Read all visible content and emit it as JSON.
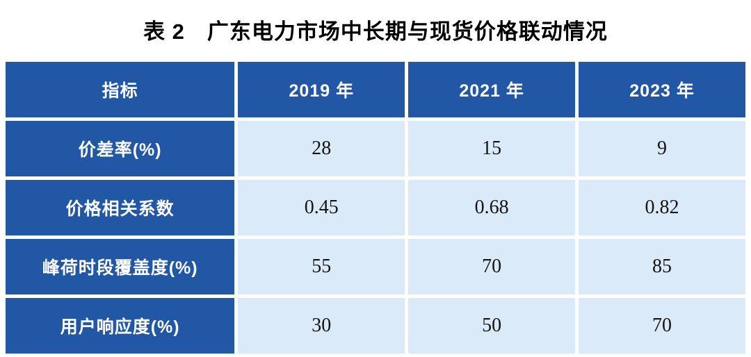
{
  "caption": "表 2　广东电力市场中长期与现货价格联动情况",
  "colors": {
    "header_bg": "#2257A6",
    "header_text": "#FFFFFF",
    "cell_bg": "#DBEAF8",
    "cell_text": "#141414",
    "page_bg": "#FFFFFF"
  },
  "chart_data": {
    "type": "table",
    "title": "表 2　广东电力市场中长期与现货价格联动情况",
    "headers": [
      "指标",
      "2019 年",
      "2021 年",
      "2023 年"
    ],
    "rows": [
      {
        "label": "价差率(%)",
        "values": [
          "28",
          "15",
          "9"
        ]
      },
      {
        "label": "价格相关系数",
        "values": [
          "0.45",
          "0.68",
          "0.82"
        ]
      },
      {
        "label": "峰荷时段覆盖度(%)",
        "values": [
          "55",
          "70",
          "85"
        ]
      },
      {
        "label": "用户响应度(%)",
        "values": [
          "30",
          "50",
          "70"
        ]
      }
    ],
    "layout_hints": {
      "header_style": "dark blue background, white bold text",
      "value_cell_style": "light blue background, black serif numerals",
      "cell_separator": "5px white gutters, no borders"
    }
  }
}
